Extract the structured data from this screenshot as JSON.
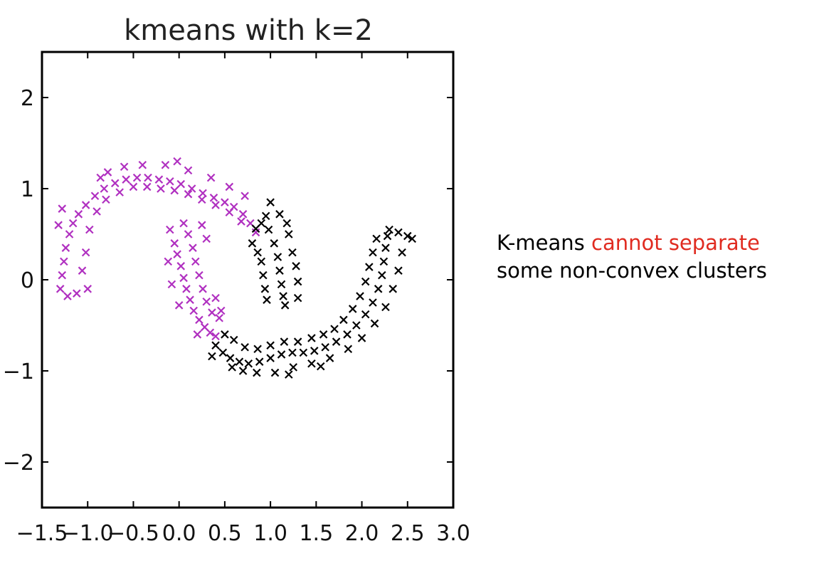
{
  "chart_data": {
    "type": "scatter",
    "title": "kmeans with k=2",
    "xlabel": "",
    "ylabel": "",
    "xlim": [
      -1.5,
      3.0
    ],
    "ylim": [
      -2.5,
      2.5
    ],
    "x_ticks": [
      -1.5,
      -1.0,
      -0.5,
      0.0,
      0.5,
      1.0,
      1.5,
      2.0,
      2.5,
      3.0
    ],
    "x_tick_labels": [
      "−1.5",
      "−1.0",
      "−0.5",
      "0.0",
      "0.5",
      "1.0",
      "1.5",
      "2.0",
      "2.5",
      "3.0"
    ],
    "y_ticks": [
      -2,
      -1,
      0,
      1,
      2
    ],
    "y_tick_labels": [
      "−2",
      "−1",
      "0",
      "1",
      "2"
    ],
    "marker": "x",
    "grid": false,
    "series": [
      {
        "color": "#b030c0",
        "points": [
          [
            -1.3,
            -0.1
          ],
          [
            -1.28,
            0.05
          ],
          [
            -1.26,
            0.2
          ],
          [
            -1.24,
            0.35
          ],
          [
            -1.2,
            0.5
          ],
          [
            -1.16,
            0.62
          ],
          [
            -1.1,
            0.72
          ],
          [
            -1.02,
            0.82
          ],
          [
            -0.92,
            0.92
          ],
          [
            -0.82,
            1.0
          ],
          [
            -0.7,
            1.06
          ],
          [
            -0.58,
            1.1
          ],
          [
            -0.46,
            1.12
          ],
          [
            -0.34,
            1.12
          ],
          [
            -0.22,
            1.1
          ],
          [
            -0.1,
            1.08
          ],
          [
            0.02,
            1.05
          ],
          [
            0.14,
            1.0
          ],
          [
            0.26,
            0.95
          ],
          [
            0.38,
            0.9
          ],
          [
            0.5,
            0.85
          ],
          [
            0.6,
            0.8
          ],
          [
            0.7,
            0.72
          ],
          [
            0.78,
            0.62
          ],
          [
            0.84,
            0.52
          ],
          [
            -1.22,
            -0.18
          ],
          [
            -1.12,
            -0.15
          ],
          [
            -1.0,
            -0.1
          ],
          [
            -1.06,
            0.1
          ],
          [
            -1.02,
            0.3
          ],
          [
            -0.98,
            0.55
          ],
          [
            -0.9,
            0.75
          ],
          [
            -0.8,
            0.88
          ],
          [
            -0.65,
            0.96
          ],
          [
            -0.5,
            1.02
          ],
          [
            -0.35,
            1.02
          ],
          [
            -0.2,
            1.0
          ],
          [
            -0.05,
            0.98
          ],
          [
            0.1,
            0.94
          ],
          [
            0.25,
            0.88
          ],
          [
            0.4,
            0.82
          ],
          [
            0.55,
            0.74
          ],
          [
            0.68,
            0.64
          ],
          [
            -0.78,
            1.18
          ],
          [
            -0.6,
            1.24
          ],
          [
            -0.4,
            1.26
          ],
          [
            -0.15,
            1.26
          ],
          [
            0.1,
            1.2
          ],
          [
            0.35,
            1.12
          ],
          [
            0.55,
            1.02
          ],
          [
            0.72,
            0.92
          ],
          [
            -1.32,
            0.6
          ],
          [
            -1.28,
            0.78
          ],
          [
            -0.86,
            1.12
          ],
          [
            -0.02,
            1.3
          ],
          [
            -0.1,
            0.55
          ],
          [
            -0.05,
            0.4
          ],
          [
            -0.02,
            0.28
          ],
          [
            0.02,
            0.15
          ],
          [
            0.05,
            0.02
          ],
          [
            0.08,
            -0.1
          ],
          [
            0.12,
            -0.22
          ],
          [
            0.16,
            -0.34
          ],
          [
            0.22,
            -0.44
          ],
          [
            0.28,
            -0.52
          ],
          [
            0.34,
            -0.58
          ],
          [
            0.4,
            -0.62
          ],
          [
            0.1,
            0.5
          ],
          [
            0.15,
            0.35
          ],
          [
            0.18,
            0.2
          ],
          [
            0.22,
            0.05
          ],
          [
            0.26,
            -0.1
          ],
          [
            0.3,
            -0.24
          ],
          [
            0.36,
            -0.36
          ],
          [
            0.44,
            -0.42
          ],
          [
            -0.12,
            0.2
          ],
          [
            -0.08,
            -0.05
          ],
          [
            0.0,
            -0.28
          ],
          [
            0.2,
            -0.6
          ],
          [
            0.05,
            0.62
          ],
          [
            0.25,
            0.6
          ],
          [
            0.3,
            0.45
          ],
          [
            0.4,
            -0.2
          ],
          [
            0.46,
            -0.34
          ]
        ]
      },
      {
        "color": "#000000",
        "points": [
          [
            0.8,
            0.4
          ],
          [
            0.86,
            0.3
          ],
          [
            0.9,
            0.2
          ],
          [
            0.92,
            0.05
          ],
          [
            0.94,
            -0.1
          ],
          [
            0.96,
            -0.22
          ],
          [
            0.95,
            0.7
          ],
          [
            0.98,
            0.55
          ],
          [
            1.04,
            0.4
          ],
          [
            1.08,
            0.25
          ],
          [
            1.1,
            0.1
          ],
          [
            1.12,
            -0.05
          ],
          [
            1.14,
            -0.18
          ],
          [
            1.16,
            -0.28
          ],
          [
            1.2,
            0.5
          ],
          [
            1.24,
            0.3
          ],
          [
            1.28,
            0.15
          ],
          [
            1.3,
            -0.02
          ],
          [
            1.3,
            -0.2
          ],
          [
            1.0,
            0.85
          ],
          [
            1.1,
            0.72
          ],
          [
            1.18,
            0.62
          ],
          [
            0.9,
            0.62
          ],
          [
            0.84,
            0.56
          ],
          [
            0.4,
            -0.72
          ],
          [
            0.48,
            -0.8
          ],
          [
            0.56,
            -0.86
          ],
          [
            0.66,
            -0.9
          ],
          [
            0.76,
            -0.92
          ],
          [
            0.88,
            -0.9
          ],
          [
            1.0,
            -0.86
          ],
          [
            1.12,
            -0.82
          ],
          [
            1.24,
            -0.8
          ],
          [
            1.36,
            -0.8
          ],
          [
            1.48,
            -0.78
          ],
          [
            1.6,
            -0.74
          ],
          [
            1.72,
            -0.68
          ],
          [
            1.84,
            -0.6
          ],
          [
            1.94,
            -0.5
          ],
          [
            2.04,
            -0.38
          ],
          [
            2.12,
            -0.25
          ],
          [
            2.18,
            -0.1
          ],
          [
            2.22,
            0.05
          ],
          [
            2.24,
            0.2
          ],
          [
            2.26,
            0.35
          ],
          [
            2.28,
            0.48
          ],
          [
            0.5,
            -0.6
          ],
          [
            0.6,
            -0.66
          ],
          [
            0.72,
            -0.74
          ],
          [
            0.86,
            -0.76
          ],
          [
            1.0,
            -0.72
          ],
          [
            1.15,
            -0.68
          ],
          [
            1.3,
            -0.68
          ],
          [
            1.45,
            -0.64
          ],
          [
            1.58,
            -0.6
          ],
          [
            1.7,
            -0.54
          ],
          [
            1.8,
            -0.44
          ],
          [
            1.9,
            -0.32
          ],
          [
            1.98,
            -0.18
          ],
          [
            2.04,
            -0.02
          ],
          [
            2.08,
            0.14
          ],
          [
            2.12,
            0.3
          ],
          [
            2.16,
            0.45
          ],
          [
            0.7,
            -1.0
          ],
          [
            0.85,
            -1.02
          ],
          [
            1.05,
            -1.02
          ],
          [
            1.25,
            -0.96
          ],
          [
            1.45,
            -0.92
          ],
          [
            1.65,
            -0.86
          ],
          [
            1.85,
            -0.76
          ],
          [
            2.0,
            -0.64
          ],
          [
            2.14,
            -0.48
          ],
          [
            2.26,
            -0.3
          ],
          [
            2.34,
            -0.1
          ],
          [
            2.4,
            0.1
          ],
          [
            2.44,
            0.3
          ],
          [
            2.5,
            0.48
          ],
          [
            2.4,
            0.52
          ],
          [
            2.3,
            0.55
          ],
          [
            2.55,
            0.45
          ],
          [
            0.36,
            -0.84
          ],
          [
            0.58,
            -0.96
          ],
          [
            1.2,
            -1.04
          ],
          [
            1.55,
            -0.95
          ]
        ]
      }
    ]
  },
  "annotation": {
    "part1": "K-means ",
    "highlight": "cannot separate",
    "line2": "some non-convex clusters"
  }
}
